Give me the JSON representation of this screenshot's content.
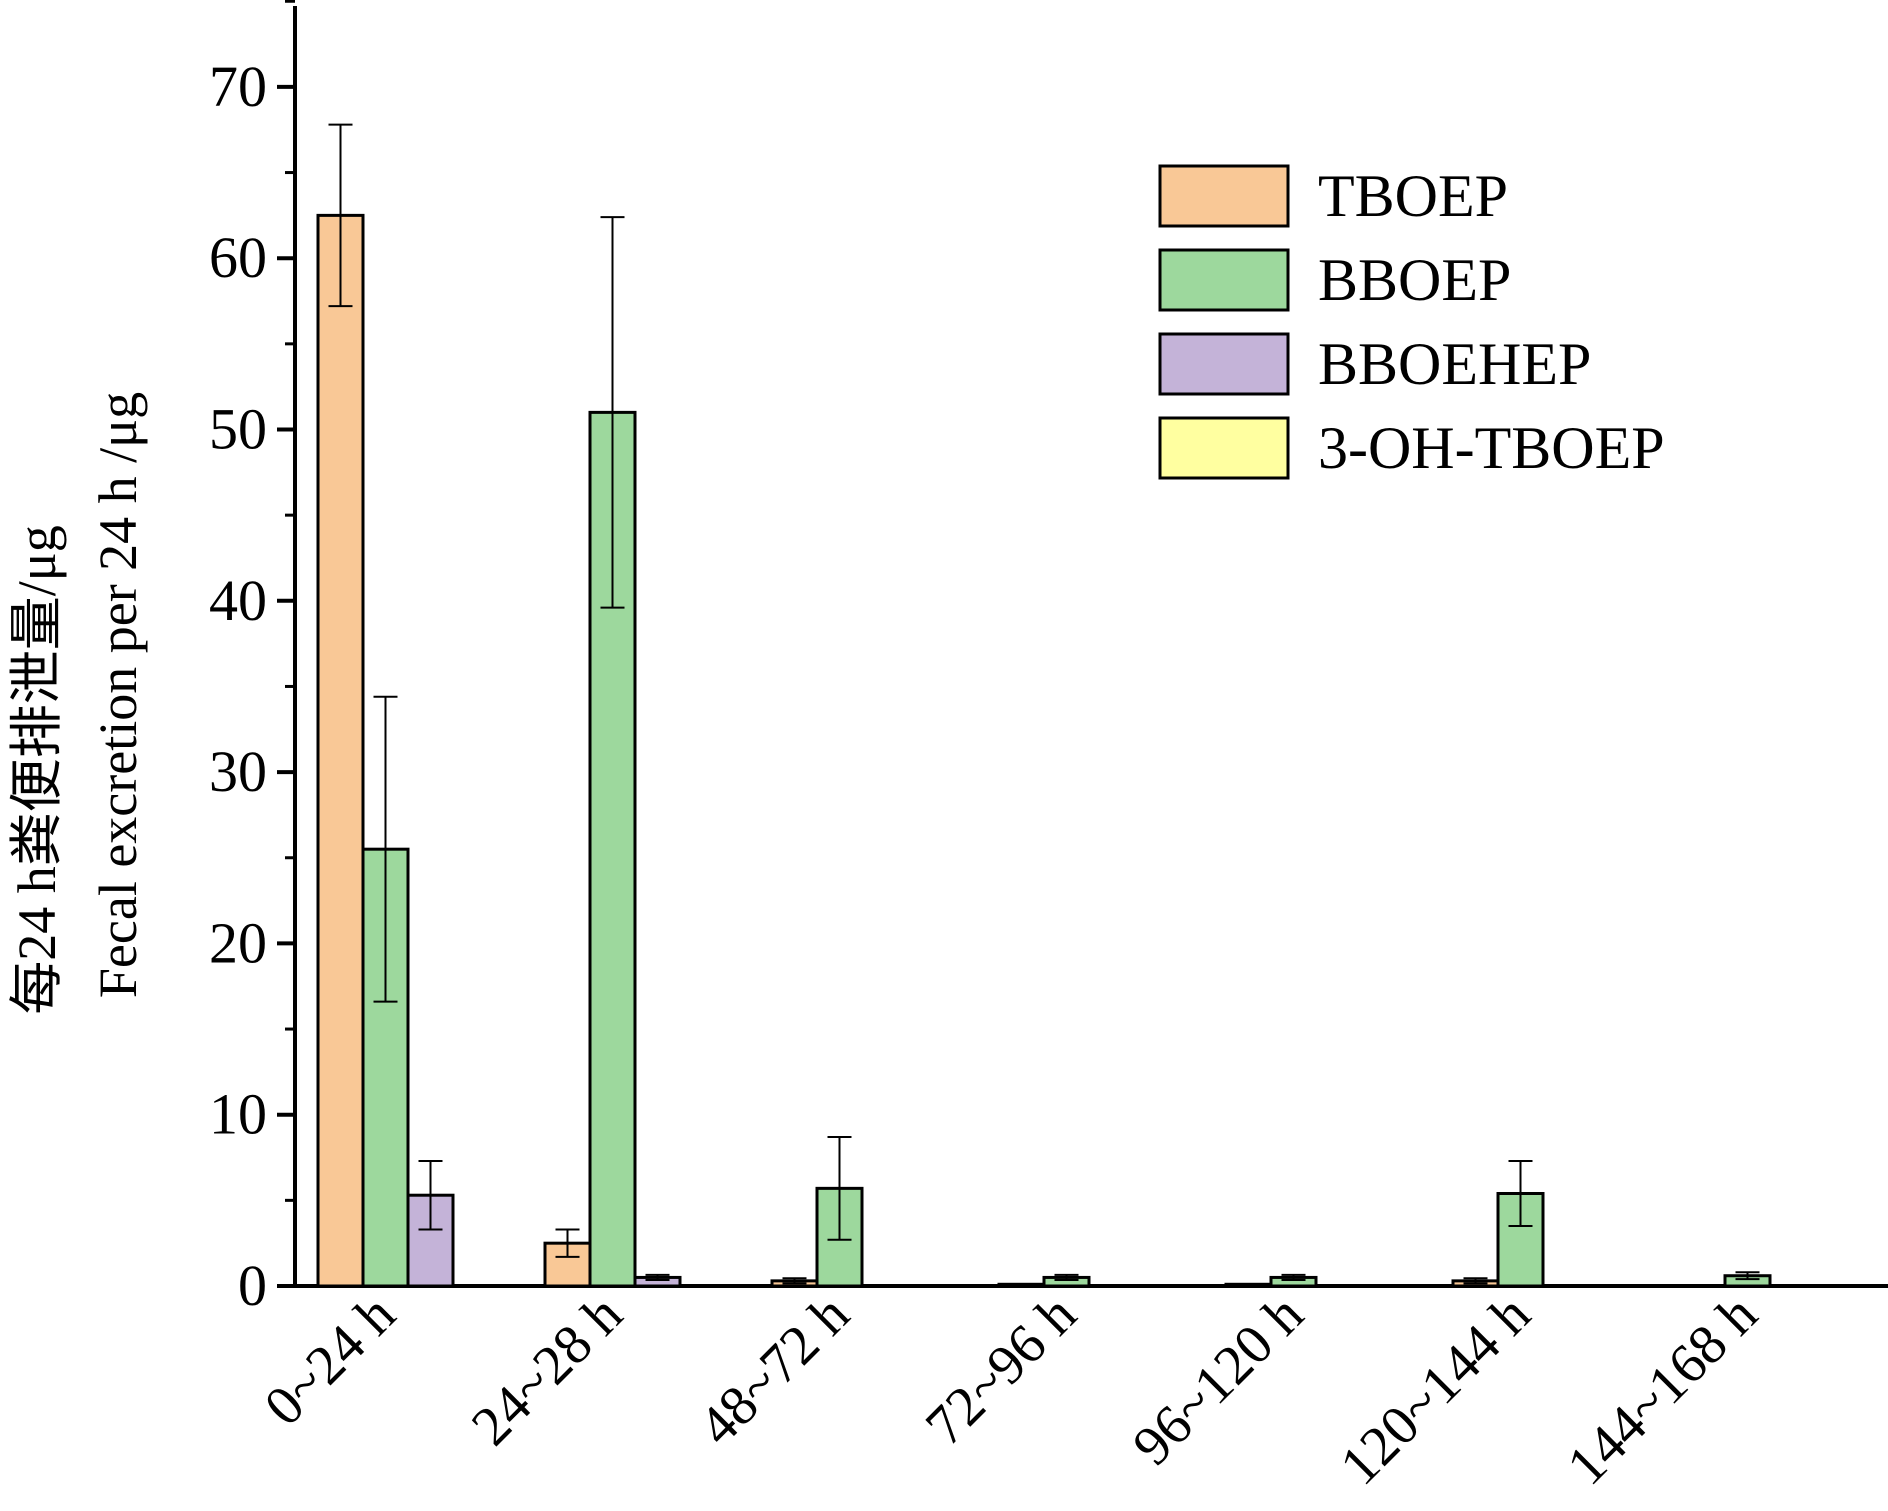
{
  "chart_data": {
    "type": "bar",
    "categories": [
      "0~24 h",
      "24~28 h",
      "48~72 h",
      "72~96 h",
      "96~120 h",
      "120~144 h",
      "144~168 h"
    ],
    "series": [
      {
        "name": "TBOEP",
        "color": "#F9C896",
        "values": [
          62.5,
          2.5,
          0.3,
          0.1,
          0.1,
          0.3,
          0
        ],
        "errors": [
          5.3,
          0.8,
          0.15,
          0,
          0,
          0.15,
          0
        ]
      },
      {
        "name": "BBOEP",
        "color": "#9DD89D",
        "values": [
          25.5,
          51.0,
          5.7,
          0.5,
          0.5,
          5.4,
          0.6
        ],
        "errors": [
          8.9,
          11.4,
          3.0,
          0.15,
          0.15,
          1.9,
          0.2
        ]
      },
      {
        "name": "BBOEHEP",
        "color": "#C4B3D8",
        "values": [
          5.3,
          0.5,
          0,
          0,
          0,
          0,
          0
        ],
        "errors": [
          2.0,
          0.15,
          0,
          0,
          0,
          0,
          0
        ]
      },
      {
        "name": "3-OH-TBOEP",
        "color": "#FFFFA0",
        "values": [
          0,
          0,
          0,
          0,
          0,
          0,
          0
        ],
        "errors": [
          0,
          0,
          0,
          0,
          0,
          0,
          0
        ]
      }
    ],
    "ylabel_line1": "每24 h粪便排泄量/μg",
    "ylabel_line2": "Fecal excretion per 24 h /μg",
    "yticks": [
      0,
      10,
      20,
      30,
      40,
      50,
      60,
      70
    ],
    "ylim": [
      0,
      75
    ],
    "legend_position": "top-right",
    "grid": false
  }
}
